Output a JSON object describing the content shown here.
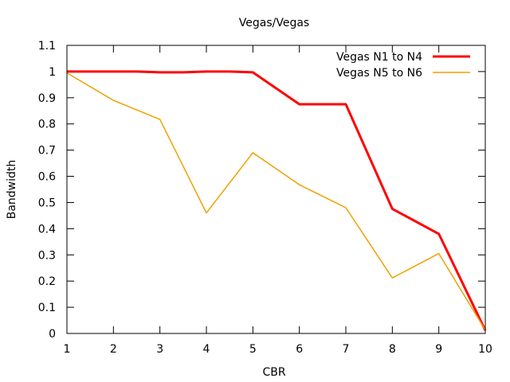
{
  "chart_data": {
    "type": "line",
    "title": "Vegas/Vegas",
    "xlabel": "CBR",
    "ylabel": "Bandwidth",
    "xlim": [
      1,
      10
    ],
    "ylim": [
      0,
      1.1
    ],
    "x_ticks": [
      1,
      2,
      3,
      4,
      5,
      6,
      7,
      8,
      9,
      10
    ],
    "y_ticks": [
      0,
      0.1,
      0.2,
      0.3,
      0.4,
      0.5,
      0.6,
      0.7,
      0.8,
      0.9,
      1,
      1.1
    ],
    "grid": false,
    "legend_position": "top-right",
    "series": [
      {
        "name": "Vegas N1 to N4",
        "color": "#ff0000",
        "x": [
          1,
          2,
          2.5,
          3,
          3.5,
          4,
          4.5,
          5,
          6,
          7,
          8,
          9,
          10
        ],
        "y": [
          1.0,
          1.0,
          1.0,
          0.997,
          0.997,
          1.0,
          1.0,
          0.997,
          0.875,
          0.875,
          0.476,
          0.38,
          0.012
        ]
      },
      {
        "name": "Vegas N5 to N6",
        "color": "#f0a000",
        "x": [
          1,
          2,
          3,
          4,
          5,
          6,
          7,
          8,
          9,
          10
        ],
        "y": [
          0.995,
          0.89,
          0.817,
          0.46,
          0.69,
          0.568,
          0.48,
          0.212,
          0.305,
          0.013
        ]
      }
    ]
  }
}
